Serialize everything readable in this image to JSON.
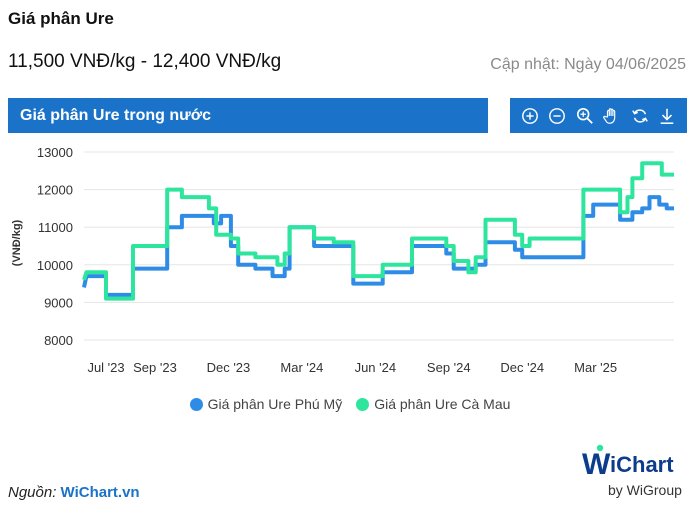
{
  "page": {
    "title": "Giá phân Ure",
    "price_range": "11,500 VNĐ/kg - 12,400 VNĐ/kg",
    "updated": "Cập nhật: Ngày 04/06/2025",
    "chart_header": "Giá phân Ure trong nước",
    "source_label": "Nguồn:",
    "source_link": "WiChart.vn",
    "logo_text": "WiChart",
    "logo_sub": "by WiGroup"
  },
  "toolbar": {
    "items": [
      "zoom-in-icon",
      "zoom-out-icon",
      "magnify-icon",
      "pan-hand-icon",
      "reset-icon",
      "download-icon"
    ]
  },
  "colors": {
    "header_bg": "#1a73c9",
    "series1": "#2f8ce6",
    "series2": "#2ee59d",
    "grid": "#e6e6e6"
  },
  "chart_data": {
    "type": "line",
    "title": "",
    "xlabel": "",
    "ylabel": "(VNĐ/kg)",
    "ylim": [
      8000,
      13000
    ],
    "yticks": [
      8000,
      9000,
      10000,
      11000,
      12000,
      13000
    ],
    "x_tick_labels": [
      "Jul '23",
      "Sep '23",
      "Dec '23",
      "Mar '24",
      "Jun '24",
      "Sep '24",
      "Dec '24",
      "Mar '25"
    ],
    "x_tick_positions": [
      0.5,
      2.5,
      5.5,
      8.5,
      11.5,
      14.5,
      17.5,
      20.5
    ],
    "xlim": [
      -0.4,
      23.7
    ],
    "legend_position": "bottom",
    "grid": true,
    "series": [
      {
        "name": "Giá phân Ure Phú Mỹ",
        "color": "#2f8ce6",
        "points": [
          [
            -0.4,
            9400
          ],
          [
            -0.3,
            9700
          ],
          [
            0.5,
            9700
          ],
          [
            0.5,
            9200
          ],
          [
            1.6,
            9200
          ],
          [
            1.6,
            9900
          ],
          [
            3.0,
            9900
          ],
          [
            3.0,
            11000
          ],
          [
            3.6,
            11000
          ],
          [
            3.6,
            11300
          ],
          [
            4.9,
            11300
          ],
          [
            4.9,
            11100
          ],
          [
            5.2,
            11100
          ],
          [
            5.2,
            11300
          ],
          [
            5.6,
            11300
          ],
          [
            5.6,
            10500
          ],
          [
            5.9,
            10500
          ],
          [
            5.9,
            10000
          ],
          [
            6.6,
            10000
          ],
          [
            6.6,
            9900
          ],
          [
            7.3,
            9900
          ],
          [
            7.3,
            9700
          ],
          [
            7.8,
            9700
          ],
          [
            7.8,
            9900
          ],
          [
            8.0,
            9900
          ],
          [
            8.0,
            11000
          ],
          [
            9.0,
            11000
          ],
          [
            9.0,
            10500
          ],
          [
            10.6,
            10500
          ],
          [
            10.6,
            9500
          ],
          [
            11.8,
            9500
          ],
          [
            11.8,
            9800
          ],
          [
            13.0,
            9800
          ],
          [
            13.0,
            10500
          ],
          [
            14.4,
            10500
          ],
          [
            14.4,
            10300
          ],
          [
            14.7,
            10300
          ],
          [
            14.7,
            9900
          ],
          [
            15.3,
            9900
          ],
          [
            15.3,
            9900
          ],
          [
            15.6,
            9900
          ],
          [
            15.6,
            10000
          ],
          [
            16.0,
            10000
          ],
          [
            16.0,
            10600
          ],
          [
            17.2,
            10600
          ],
          [
            17.2,
            10400
          ],
          [
            17.5,
            10400
          ],
          [
            17.5,
            10200
          ],
          [
            20.0,
            10200
          ],
          [
            20.0,
            11300
          ],
          [
            20.4,
            11300
          ],
          [
            20.4,
            11600
          ],
          [
            21.5,
            11600
          ],
          [
            21.5,
            11200
          ],
          [
            22.0,
            11200
          ],
          [
            22.0,
            11400
          ],
          [
            22.4,
            11400
          ],
          [
            22.4,
            11500
          ],
          [
            22.7,
            11500
          ],
          [
            22.7,
            11800
          ],
          [
            23.1,
            11800
          ],
          [
            23.1,
            11600
          ],
          [
            23.4,
            11600
          ],
          [
            23.4,
            11500
          ],
          [
            23.7,
            11500
          ]
        ]
      },
      {
        "name": "Giá phân Ure Cà Mau",
        "color": "#2ee59d",
        "points": [
          [
            -0.4,
            9600
          ],
          [
            -0.3,
            9800
          ],
          [
            0.5,
            9800
          ],
          [
            0.5,
            9100
          ],
          [
            1.6,
            9100
          ],
          [
            1.6,
            10500
          ],
          [
            3.0,
            10500
          ],
          [
            3.0,
            12000
          ],
          [
            3.6,
            12000
          ],
          [
            3.6,
            11800
          ],
          [
            4.7,
            11800
          ],
          [
            4.7,
            11500
          ],
          [
            5.0,
            11500
          ],
          [
            5.0,
            10800
          ],
          [
            5.6,
            10800
          ],
          [
            5.6,
            10700
          ],
          [
            5.9,
            10700
          ],
          [
            5.9,
            10300
          ],
          [
            6.6,
            10300
          ],
          [
            6.6,
            10200
          ],
          [
            7.5,
            10200
          ],
          [
            7.5,
            10000
          ],
          [
            7.8,
            10000
          ],
          [
            7.8,
            10300
          ],
          [
            8.0,
            10300
          ],
          [
            8.0,
            11000
          ],
          [
            9.0,
            11000
          ],
          [
            9.0,
            10700
          ],
          [
            9.8,
            10700
          ],
          [
            9.8,
            10600
          ],
          [
            10.6,
            10600
          ],
          [
            10.6,
            9700
          ],
          [
            11.8,
            9700
          ],
          [
            11.8,
            10000
          ],
          [
            13.0,
            10000
          ],
          [
            13.0,
            10700
          ],
          [
            14.4,
            10700
          ],
          [
            14.4,
            10500
          ],
          [
            14.7,
            10500
          ],
          [
            14.7,
            10100
          ],
          [
            15.3,
            10100
          ],
          [
            15.3,
            9800
          ],
          [
            15.6,
            9800
          ],
          [
            15.6,
            10200
          ],
          [
            16.0,
            10200
          ],
          [
            16.0,
            11200
          ],
          [
            17.2,
            11200
          ],
          [
            17.2,
            10800
          ],
          [
            17.5,
            10800
          ],
          [
            17.5,
            10500
          ],
          [
            17.8,
            10500
          ],
          [
            17.8,
            10700
          ],
          [
            20.0,
            10700
          ],
          [
            20.0,
            12000
          ],
          [
            21.5,
            12000
          ],
          [
            21.5,
            11400
          ],
          [
            21.8,
            11400
          ],
          [
            21.8,
            11800
          ],
          [
            22.0,
            11800
          ],
          [
            22.0,
            12300
          ],
          [
            22.4,
            12300
          ],
          [
            22.4,
            12700
          ],
          [
            23.2,
            12700
          ],
          [
            23.2,
            12400
          ],
          [
            23.7,
            12400
          ]
        ]
      }
    ]
  }
}
